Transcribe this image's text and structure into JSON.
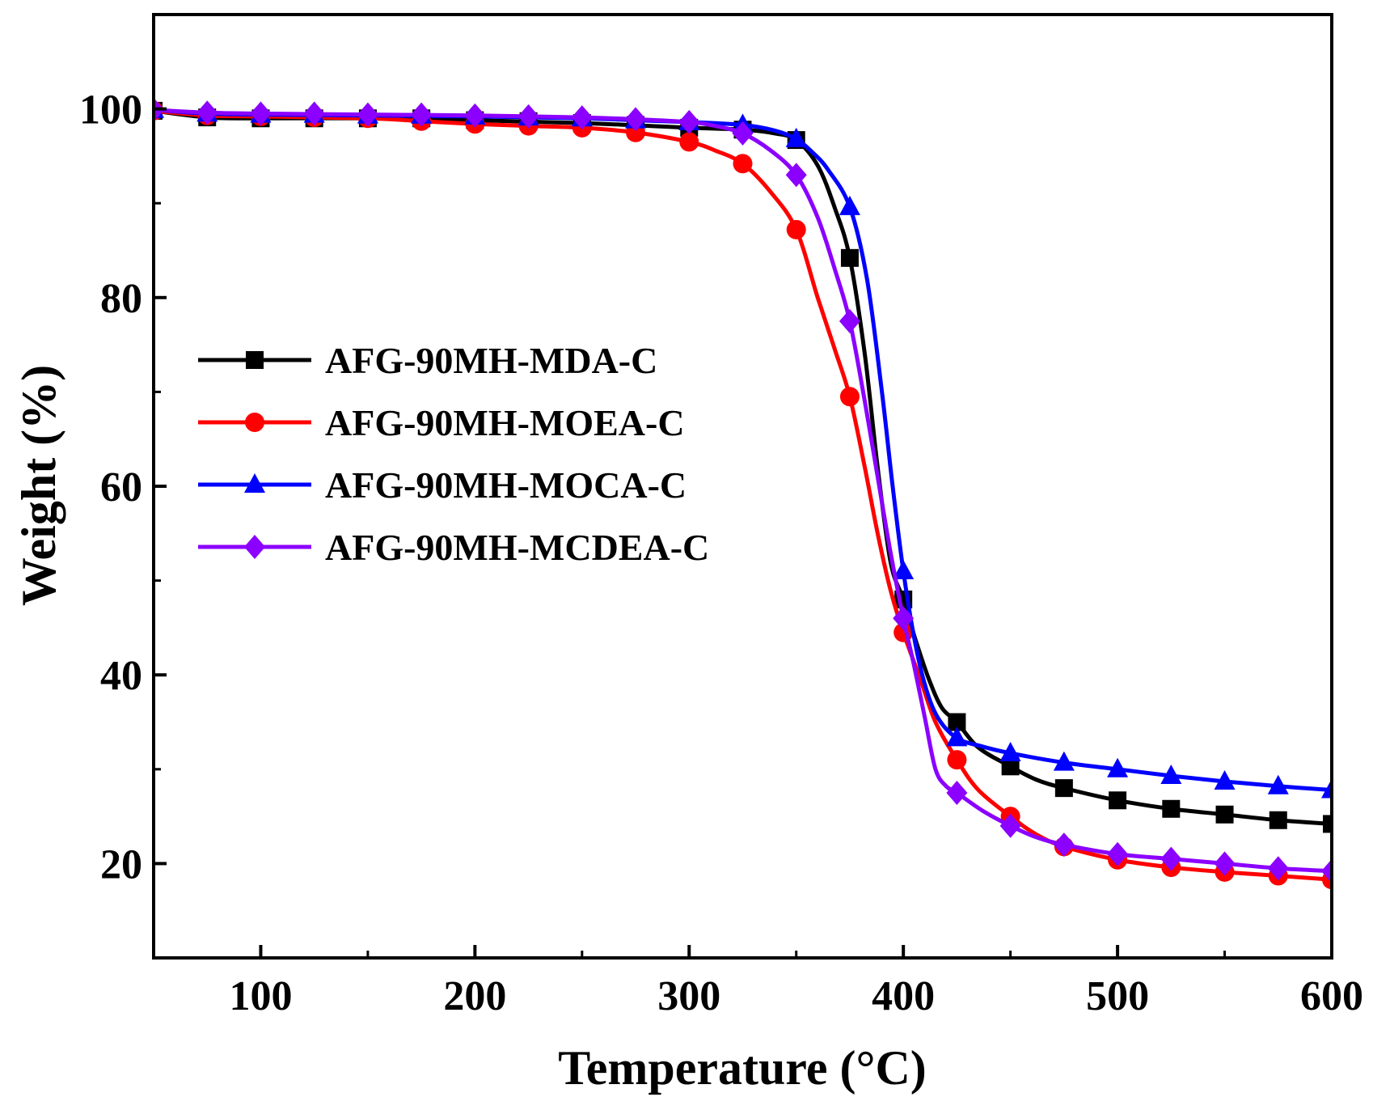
{
  "chart_data": {
    "type": "line",
    "xlabel": "Temperature (°C)",
    "ylabel": "Weight (%)",
    "xlim": [
      50,
      600
    ],
    "ylim": [
      10,
      110
    ],
    "xticks": [
      100,
      200,
      300,
      400,
      500,
      600
    ],
    "yticks": [
      20,
      40,
      60,
      80,
      100
    ],
    "x_tick_labels": [
      "100",
      "200",
      "300",
      "400",
      "500",
      "600"
    ],
    "y_tick_labels": [
      "20",
      "40",
      "60",
      "80",
      "100"
    ],
    "grid": false,
    "legend_position": "center-left",
    "series": [
      {
        "name": "AFG-90MH-MDA-C",
        "color": "#000000",
        "marker": "square",
        "curve": [
          [
            50,
            99.8
          ],
          [
            75,
            99.1
          ],
          [
            100,
            99.0
          ],
          [
            150,
            99.0
          ],
          [
            200,
            98.8
          ],
          [
            250,
            98.5
          ],
          [
            300,
            98.0
          ],
          [
            325,
            97.8
          ],
          [
            340,
            97.4
          ],
          [
            350,
            96.7
          ],
          [
            360,
            94.0
          ],
          [
            368,
            89.5
          ],
          [
            375,
            84.2
          ],
          [
            382,
            74
          ],
          [
            388,
            62
          ],
          [
            394,
            52
          ],
          [
            400,
            48.0
          ],
          [
            406,
            43.5
          ],
          [
            412,
            39.5
          ],
          [
            418,
            36.5
          ],
          [
            425,
            35.0
          ],
          [
            435,
            32.3
          ],
          [
            450,
            30.3
          ],
          [
            462,
            28.9
          ],
          [
            475,
            28.0
          ],
          [
            500,
            26.7
          ],
          [
            525,
            25.8
          ],
          [
            550,
            25.2
          ],
          [
            575,
            24.6
          ],
          [
            600,
            24.2
          ]
        ],
        "markers_x": [
          50,
          75,
          100,
          125,
          150,
          175,
          200,
          225,
          250,
          275,
          300,
          325,
          350,
          375,
          400,
          425,
          450,
          475,
          500,
          525,
          550,
          575,
          600
        ],
        "markers_y": [
          99.8,
          99.1,
          99.0,
          99.0,
          99.0,
          99.0,
          98.8,
          98.7,
          98.5,
          98.3,
          98.0,
          97.8,
          96.7,
          84.2,
          48.0,
          35.0,
          30.3,
          28.0,
          26.7,
          25.8,
          25.2,
          24.6,
          24.2
        ]
      },
      {
        "name": "AFG-90MH-MOEA-C",
        "color": "#ff0000",
        "marker": "circle",
        "curve": [
          [
            50,
            99.8
          ],
          [
            75,
            99.3
          ],
          [
            100,
            99.2
          ],
          [
            150,
            99.0
          ],
          [
            175,
            98.7
          ],
          [
            200,
            98.4
          ],
          [
            225,
            98.2
          ],
          [
            250,
            98.0
          ],
          [
            275,
            97.5
          ],
          [
            300,
            96.5
          ],
          [
            312,
            95.6
          ],
          [
            325,
            94.2
          ],
          [
            338,
            91.2
          ],
          [
            350,
            87.2
          ],
          [
            360,
            80
          ],
          [
            368,
            74.5
          ],
          [
            375,
            69.5
          ],
          [
            382,
            62
          ],
          [
            388,
            55
          ],
          [
            394,
            49
          ],
          [
            400,
            44.5
          ],
          [
            408,
            39.5
          ],
          [
            415,
            35
          ],
          [
            425,
            31.0
          ],
          [
            435,
            27.8
          ],
          [
            450,
            25.0
          ],
          [
            462,
            23.1
          ],
          [
            475,
            21.8
          ],
          [
            500,
            20.4
          ],
          [
            525,
            19.6
          ],
          [
            550,
            19.1
          ],
          [
            575,
            18.7
          ],
          [
            600,
            18.3
          ]
        ],
        "markers_x": [
          50,
          75,
          100,
          125,
          150,
          175,
          200,
          225,
          250,
          275,
          300,
          325,
          350,
          375,
          400,
          425,
          450,
          475,
          500,
          525,
          550,
          575,
          600
        ],
        "markers_y": [
          99.8,
          99.3,
          99.2,
          99.1,
          99.0,
          98.7,
          98.4,
          98.2,
          98.0,
          97.5,
          96.5,
          94.2,
          87.2,
          69.5,
          44.5,
          31.0,
          25.0,
          21.8,
          20.4,
          19.6,
          19.1,
          18.7,
          18.3
        ]
      },
      {
        "name": "AFG-90MH-MOCA-C",
        "color": "#0000ff",
        "marker": "triangle",
        "curve": [
          [
            50,
            99.9
          ],
          [
            75,
            99.5
          ],
          [
            100,
            99.4
          ],
          [
            150,
            99.3
          ],
          [
            200,
            99.2
          ],
          [
            250,
            99.0
          ],
          [
            275,
            98.8
          ],
          [
            300,
            98.6
          ],
          [
            325,
            98.3
          ],
          [
            340,
            97.7
          ],
          [
            350,
            96.8
          ],
          [
            358,
            95.3
          ],
          [
            365,
            93.5
          ],
          [
            375,
            89.6
          ],
          [
            383,
            82
          ],
          [
            390,
            70
          ],
          [
            395,
            60
          ],
          [
            400,
            51.0
          ],
          [
            405,
            44
          ],
          [
            410,
            39
          ],
          [
            416,
            35.5
          ],
          [
            425,
            33.3
          ],
          [
            437,
            32.4
          ],
          [
            450,
            31.7
          ],
          [
            475,
            30.7
          ],
          [
            500,
            30.0
          ],
          [
            525,
            29.3
          ],
          [
            550,
            28.7
          ],
          [
            575,
            28.2
          ],
          [
            600,
            27.8
          ]
        ],
        "markers_x": [
          50,
          75,
          100,
          125,
          150,
          175,
          200,
          225,
          250,
          275,
          300,
          325,
          350,
          375,
          400,
          425,
          450,
          475,
          500,
          525,
          550,
          575,
          600
        ],
        "markers_y": [
          99.9,
          99.5,
          99.4,
          99.4,
          99.3,
          99.3,
          99.2,
          99.1,
          99.0,
          98.8,
          98.6,
          98.3,
          96.8,
          89.6,
          51.0,
          33.3,
          31.7,
          30.7,
          30.0,
          29.3,
          28.7,
          28.2,
          27.8
        ]
      },
      {
        "name": "AFG-90MH-MCDEA-C",
        "color": "#8b00ff",
        "marker": "diamond",
        "curve": [
          [
            50,
            99.9
          ],
          [
            75,
            99.6
          ],
          [
            100,
            99.5
          ],
          [
            150,
            99.4
          ],
          [
            200,
            99.3
          ],
          [
            250,
            99.1
          ],
          [
            275,
            98.9
          ],
          [
            300,
            98.6
          ],
          [
            312,
            98.2
          ],
          [
            325,
            97.4
          ],
          [
            338,
            95.6
          ],
          [
            350,
            93.0
          ],
          [
            360,
            88.5
          ],
          [
            368,
            83
          ],
          [
            375,
            77.5
          ],
          [
            382,
            69
          ],
          [
            388,
            61
          ],
          [
            394,
            53
          ],
          [
            400,
            46.0
          ],
          [
            405,
            41
          ],
          [
            410,
            35.5
          ],
          [
            415,
            30
          ],
          [
            420,
            28.2
          ],
          [
            425,
            27.5
          ],
          [
            437,
            25.6
          ],
          [
            450,
            24.0
          ],
          [
            462,
            22.8
          ],
          [
            475,
            22.0
          ],
          [
            500,
            21.0
          ],
          [
            525,
            20.5
          ],
          [
            550,
            20.0
          ],
          [
            575,
            19.5
          ],
          [
            600,
            19.2
          ]
        ],
        "markers_x": [
          50,
          75,
          100,
          125,
          150,
          175,
          200,
          225,
          250,
          275,
          300,
          325,
          350,
          375,
          400,
          425,
          450,
          475,
          500,
          525,
          550,
          575,
          600
        ],
        "markers_y": [
          99.9,
          99.6,
          99.5,
          99.5,
          99.4,
          99.4,
          99.3,
          99.2,
          99.1,
          98.9,
          98.6,
          97.4,
          93.0,
          77.5,
          46.0,
          27.5,
          24.0,
          22.0,
          21.0,
          20.5,
          20.0,
          19.5,
          19.2
        ]
      }
    ]
  }
}
